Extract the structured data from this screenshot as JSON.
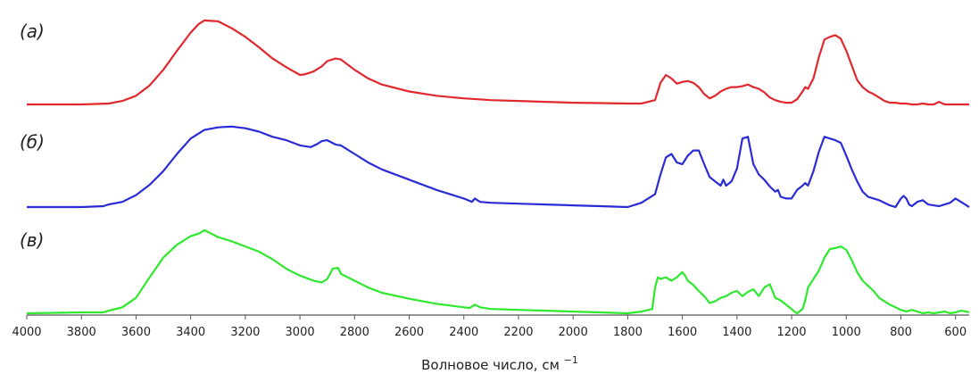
{
  "chart_data": {
    "type": "line",
    "title": "",
    "xlabel": "Волновое число, см",
    "xlabel_superscript": "−1",
    "xlim": [
      4000,
      550
    ],
    "x_reversed": true,
    "x_ticks": [
      4000,
      3800,
      3600,
      3400,
      3200,
      3000,
      2800,
      2600,
      2400,
      2200,
      2000,
      1800,
      1600,
      1400,
      1200,
      1000,
      800,
      600
    ],
    "y_axis_shown": false,
    "y_units": "arbitrary (stacked, offset)",
    "grid": false,
    "legend": "none",
    "series": [
      {
        "name": "(а)",
        "color": "#e0282e",
        "x": [
          4000,
          3800,
          3700,
          3650,
          3600,
          3550,
          3500,
          3450,
          3400,
          3370,
          3350,
          3300,
          3250,
          3200,
          3150,
          3100,
          3050,
          3000,
          2980,
          2950,
          2920,
          2900,
          2870,
          2850,
          2800,
          2750,
          2700,
          2600,
          2500,
          2400,
          2300,
          2200,
          2100,
          2000,
          1900,
          1800,
          1750,
          1700,
          1680,
          1660,
          1640,
          1620,
          1600,
          1580,
          1560,
          1540,
          1520,
          1500,
          1480,
          1460,
          1440,
          1420,
          1400,
          1380,
          1360,
          1340,
          1320,
          1300,
          1280,
          1260,
          1240,
          1220,
          1200,
          1180,
          1160,
          1150,
          1140,
          1120,
          1100,
          1080,
          1060,
          1040,
          1020,
          1000,
          980,
          960,
          940,
          920,
          900,
          880,
          860,
          840,
          820,
          800,
          780,
          760,
          740,
          720,
          700,
          680,
          660,
          640,
          620,
          600,
          580,
          560,
          550
        ],
        "y": [
          0.0,
          0.0,
          0.01,
          0.04,
          0.1,
          0.22,
          0.4,
          0.62,
          0.83,
          0.93,
          0.97,
          0.96,
          0.88,
          0.78,
          0.66,
          0.53,
          0.43,
          0.34,
          0.35,
          0.38,
          0.44,
          0.5,
          0.53,
          0.52,
          0.4,
          0.3,
          0.23,
          0.15,
          0.1,
          0.07,
          0.05,
          0.04,
          0.03,
          0.02,
          0.015,
          0.01,
          0.01,
          0.05,
          0.25,
          0.34,
          0.3,
          0.24,
          0.26,
          0.27,
          0.25,
          0.2,
          0.12,
          0.07,
          0.1,
          0.15,
          0.18,
          0.2,
          0.2,
          0.21,
          0.23,
          0.2,
          0.18,
          0.14,
          0.08,
          0.05,
          0.03,
          0.02,
          0.02,
          0.06,
          0.15,
          0.2,
          0.18,
          0.3,
          0.55,
          0.75,
          0.78,
          0.8,
          0.76,
          0.62,
          0.45,
          0.28,
          0.2,
          0.15,
          0.12,
          0.08,
          0.04,
          0.02,
          0.02,
          0.01,
          0.01,
          0.0,
          0.0,
          0.01,
          0.0,
          0.0,
          0.03,
          0.0,
          0.0,
          0.0,
          0.0,
          0.0,
          0.0
        ]
      },
      {
        "name": "(б)",
        "color": "#2b2bd6",
        "x": [
          4000,
          3800,
          3720,
          3700,
          3650,
          3600,
          3550,
          3500,
          3450,
          3400,
          3350,
          3300,
          3250,
          3200,
          3150,
          3100,
          3050,
          3000,
          2960,
          2940,
          2920,
          2900,
          2870,
          2850,
          2800,
          2750,
          2700,
          2600,
          2500,
          2400,
          2370,
          2360,
          2340,
          2300,
          2200,
          2100,
          2000,
          1900,
          1800,
          1750,
          1700,
          1680,
          1660,
          1640,
          1620,
          1600,
          1580,
          1560,
          1540,
          1520,
          1500,
          1480,
          1460,
          1450,
          1440,
          1420,
          1400,
          1380,
          1360,
          1340,
          1320,
          1300,
          1280,
          1260,
          1250,
          1240,
          1220,
          1200,
          1180,
          1160,
          1150,
          1140,
          1120,
          1100,
          1080,
          1060,
          1040,
          1020,
          1000,
          980,
          960,
          940,
          920,
          900,
          880,
          860,
          840,
          820,
          800,
          790,
          780,
          770,
          760,
          740,
          720,
          700,
          680,
          660,
          640,
          620,
          600,
          580,
          560,
          550
        ],
        "y": [
          0.0,
          0.0,
          0.01,
          0.03,
          0.06,
          0.14,
          0.26,
          0.42,
          0.62,
          0.8,
          0.9,
          0.93,
          0.94,
          0.92,
          0.88,
          0.82,
          0.78,
          0.72,
          0.7,
          0.73,
          0.77,
          0.78,
          0.73,
          0.72,
          0.62,
          0.52,
          0.44,
          0.32,
          0.2,
          0.1,
          0.06,
          0.1,
          0.06,
          0.05,
          0.04,
          0.03,
          0.02,
          0.01,
          0.0,
          0.05,
          0.15,
          0.38,
          0.58,
          0.62,
          0.52,
          0.5,
          0.6,
          0.66,
          0.66,
          0.5,
          0.35,
          0.3,
          0.25,
          0.32,
          0.25,
          0.3,
          0.45,
          0.8,
          0.82,
          0.5,
          0.38,
          0.32,
          0.24,
          0.18,
          0.2,
          0.12,
          0.1,
          0.1,
          0.2,
          0.25,
          0.28,
          0.25,
          0.42,
          0.65,
          0.82,
          0.8,
          0.78,
          0.75,
          0.6,
          0.44,
          0.3,
          0.18,
          0.12,
          0.1,
          0.08,
          0.05,
          0.02,
          0.0,
          0.1,
          0.13,
          0.1,
          0.03,
          0.01,
          0.06,
          0.08,
          0.03,
          0.02,
          0.01,
          0.03,
          0.05,
          0.1,
          0.06,
          0.02,
          0.0
        ]
      },
      {
        "name": "(в)",
        "color": "#2ee82e",
        "x": [
          4000,
          3800,
          3720,
          3700,
          3650,
          3600,
          3550,
          3500,
          3450,
          3400,
          3370,
          3350,
          3300,
          3250,
          3200,
          3150,
          3100,
          3050,
          3000,
          2950,
          2920,
          2900,
          2880,
          2860,
          2850,
          2800,
          2750,
          2700,
          2600,
          2500,
          2400,
          2380,
          2360,
          2340,
          2300,
          2200,
          2100,
          2000,
          1900,
          1800,
          1750,
          1710,
          1700,
          1690,
          1680,
          1660,
          1640,
          1620,
          1600,
          1590,
          1580,
          1560,
          1540,
          1520,
          1500,
          1480,
          1460,
          1440,
          1420,
          1400,
          1380,
          1360,
          1340,
          1320,
          1300,
          1280,
          1260,
          1240,
          1220,
          1200,
          1190,
          1180,
          1160,
          1150,
          1140,
          1120,
          1100,
          1080,
          1060,
          1040,
          1020,
          1000,
          980,
          960,
          940,
          920,
          900,
          880,
          860,
          840,
          820,
          800,
          780,
          760,
          740,
          720,
          700,
          680,
          660,
          640,
          620,
          600,
          580,
          560,
          550
        ],
        "y": [
          0.0,
          0.01,
          0.01,
          0.03,
          0.07,
          0.18,
          0.42,
          0.65,
          0.8,
          0.9,
          0.93,
          0.97,
          0.89,
          0.84,
          0.78,
          0.72,
          0.63,
          0.52,
          0.44,
          0.38,
          0.36,
          0.4,
          0.52,
          0.53,
          0.46,
          0.38,
          0.3,
          0.24,
          0.17,
          0.11,
          0.07,
          0.06,
          0.1,
          0.07,
          0.05,
          0.04,
          0.03,
          0.02,
          0.01,
          0.0,
          0.02,
          0.05,
          0.3,
          0.42,
          0.4,
          0.42,
          0.38,
          0.42,
          0.48,
          0.44,
          0.38,
          0.33,
          0.26,
          0.2,
          0.12,
          0.14,
          0.18,
          0.2,
          0.24,
          0.26,
          0.2,
          0.25,
          0.28,
          0.2,
          0.3,
          0.34,
          0.18,
          0.15,
          0.1,
          0.05,
          0.02,
          0.0,
          0.05,
          0.15,
          0.3,
          0.4,
          0.5,
          0.65,
          0.75,
          0.76,
          0.78,
          0.74,
          0.62,
          0.48,
          0.38,
          0.32,
          0.26,
          0.18,
          0.14,
          0.1,
          0.07,
          0.04,
          0.02,
          0.04,
          0.02,
          0.0,
          0.01,
          0.0,
          0.01,
          0.02,
          0.0,
          0.01,
          0.03,
          0.02,
          0.01
        ]
      }
    ]
  }
}
